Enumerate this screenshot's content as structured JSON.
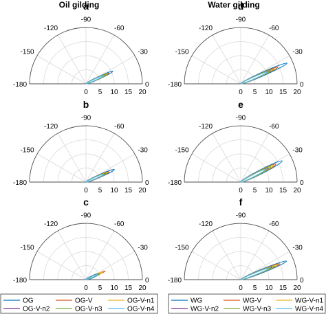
{
  "column_titles": [
    "Oil gilding",
    "Water gilding"
  ],
  "colors": {
    "blue": "#0072bd",
    "orange": "#d95319",
    "yellow": "#edb120",
    "purple": "#7e2f8e",
    "green": "#77ac30",
    "cyan": "#4dbeee"
  },
  "chart_data": [
    {
      "type": "polar-ellipse",
      "panel": "a",
      "column": 0,
      "row": 0,
      "angle_ticks": [
        "-180",
        "-150",
        "-120",
        "-90",
        "-60",
        "-30",
        "0"
      ],
      "radius_ticks": [
        "0",
        "5",
        "10",
        "15",
        "20"
      ],
      "rlim": [
        0,
        20
      ],
      "series": [
        {
          "name": "OG",
          "color_key": "blue",
          "angle_deg": -25,
          "length": 10.5,
          "width": 0.9
        },
        {
          "name": "OG-V",
          "color_key": "orange",
          "angle_deg": -25,
          "length": 9.0,
          "width": 0.7
        },
        {
          "name": "OG-V-n1",
          "color_key": "yellow",
          "angle_deg": -25,
          "length": 8.5,
          "width": 0.65
        },
        {
          "name": "OG-V-n2",
          "color_key": "purple",
          "angle_deg": -25,
          "length": 7.5,
          "width": 0.55
        },
        {
          "name": "OG-V-n3",
          "color_key": "green",
          "angle_deg": -25,
          "length": 8.0,
          "width": 0.6
        },
        {
          "name": "OG-V-n4",
          "color_key": "cyan",
          "angle_deg": -25,
          "length": 7.0,
          "width": 0.5
        }
      ]
    },
    {
      "type": "polar-ellipse",
      "panel": "d",
      "column": 1,
      "row": 0,
      "angle_ticks": [
        "-180",
        "-150",
        "-120",
        "-90",
        "-60",
        "-30",
        "0"
      ],
      "radius_ticks": [
        "0",
        "5",
        "10",
        "15",
        "20"
      ],
      "rlim": [
        0,
        20
      ],
      "series": [
        {
          "name": "WG",
          "color_key": "blue",
          "angle_deg": -24,
          "length": 18.0,
          "width": 1.3
        },
        {
          "name": "WG-V",
          "color_key": "orange",
          "angle_deg": -24,
          "length": 14.5,
          "width": 1.0
        },
        {
          "name": "WG-V-n1",
          "color_key": "yellow",
          "angle_deg": -24,
          "length": 13.0,
          "width": 0.9
        },
        {
          "name": "WG-V-n2",
          "color_key": "purple",
          "angle_deg": -24,
          "length": 11.5,
          "width": 0.8
        },
        {
          "name": "WG-V-n3",
          "color_key": "green",
          "angle_deg": -24,
          "length": 12.5,
          "width": 0.85
        },
        {
          "name": "WG-V-n4",
          "color_key": "cyan",
          "angle_deg": -24,
          "length": 10.5,
          "width": 0.7
        }
      ]
    },
    {
      "type": "polar-ellipse",
      "panel": "b",
      "column": 0,
      "row": 1,
      "angle_ticks": [
        "-180",
        "-150",
        "-120",
        "-90",
        "-60",
        "-30",
        "0"
      ],
      "radius_ticks": [
        "0",
        "5",
        "10",
        "15",
        "20"
      ],
      "rlim": [
        0,
        20
      ],
      "series": [
        {
          "name": "OG",
          "color_key": "blue",
          "angle_deg": -24,
          "length": 11.0,
          "width": 1.0
        },
        {
          "name": "OG-V",
          "color_key": "orange",
          "angle_deg": -24,
          "length": 9.0,
          "width": 0.8
        },
        {
          "name": "OG-V-n1",
          "color_key": "yellow",
          "angle_deg": -24,
          "length": 8.5,
          "width": 0.7
        },
        {
          "name": "OG-V-n2",
          "color_key": "purple",
          "angle_deg": -24,
          "length": 7.5,
          "width": 0.6
        },
        {
          "name": "OG-V-n3",
          "color_key": "green",
          "angle_deg": -24,
          "length": 8.0,
          "width": 0.65
        },
        {
          "name": "OG-V-n4",
          "color_key": "cyan",
          "angle_deg": -24,
          "length": 7.0,
          "width": 0.55
        }
      ]
    },
    {
      "type": "polar-ellipse",
      "panel": "e",
      "column": 1,
      "row": 1,
      "angle_ticks": [
        "-180",
        "-150",
        "-120",
        "-90",
        "-60",
        "-30",
        "0"
      ],
      "radius_ticks": [
        "0",
        "5",
        "10",
        "15",
        "20"
      ],
      "rlim": [
        0,
        20
      ],
      "series": [
        {
          "name": "WG",
          "color_key": "blue",
          "angle_deg": -27,
          "length": 16.5,
          "width": 1.5
        },
        {
          "name": "WG-V",
          "color_key": "orange",
          "angle_deg": -27,
          "length": 14.0,
          "width": 1.2
        },
        {
          "name": "WG-V-n1",
          "color_key": "yellow",
          "angle_deg": -27,
          "length": 13.0,
          "width": 1.1
        },
        {
          "name": "WG-V-n2",
          "color_key": "purple",
          "angle_deg": -27,
          "length": 11.0,
          "width": 0.9
        },
        {
          "name": "WG-V-n3",
          "color_key": "green",
          "angle_deg": -27,
          "length": 12.0,
          "width": 1.0
        },
        {
          "name": "WG-V-n4",
          "color_key": "cyan",
          "angle_deg": -27,
          "length": 10.0,
          "width": 0.8
        }
      ]
    },
    {
      "type": "polar-ellipse",
      "panel": "c",
      "column": 0,
      "row": 2,
      "angle_ticks": [
        "-180",
        "-150",
        "-120",
        "-90",
        "-60",
        "-30",
        "0"
      ],
      "radius_ticks": [
        "0",
        "5",
        "10",
        "15",
        "20"
      ],
      "rlim": [
        0,
        20
      ],
      "series": [
        {
          "name": "OG",
          "color_key": "blue",
          "angle_deg": -24,
          "length": 5.5,
          "width": 0.8
        },
        {
          "name": "OG-V",
          "color_key": "orange",
          "angle_deg": -24,
          "length": 7.5,
          "width": 0.5
        },
        {
          "name": "OG-V-n1",
          "color_key": "yellow",
          "angle_deg": -24,
          "length": 6.5,
          "width": 0.5
        },
        {
          "name": "OG-V-n2",
          "color_key": "purple",
          "angle_deg": -24,
          "length": 5.0,
          "width": 0.45
        },
        {
          "name": "OG-V-n3",
          "color_key": "green",
          "angle_deg": -24,
          "length": 5.5,
          "width": 0.45
        },
        {
          "name": "OG-V-n4",
          "color_key": "cyan",
          "angle_deg": -24,
          "length": 4.5,
          "width": 0.4
        }
      ]
    },
    {
      "type": "polar-ellipse",
      "panel": "f",
      "column": 1,
      "row": 2,
      "angle_ticks": [
        "-180",
        "-150",
        "-120",
        "-90",
        "-60",
        "-30",
        "0"
      ],
      "radius_ticks": [
        "0",
        "5",
        "10",
        "15",
        "20"
      ],
      "rlim": [
        0,
        20
      ],
      "series": [
        {
          "name": "WG",
          "color_key": "blue",
          "angle_deg": -22,
          "length": 17.5,
          "width": 1.3
        },
        {
          "name": "WG-V",
          "color_key": "orange",
          "angle_deg": -22,
          "length": 15.0,
          "width": 1.0
        },
        {
          "name": "WG-V-n1",
          "color_key": "yellow",
          "angle_deg": -22,
          "length": 14.0,
          "width": 0.9
        },
        {
          "name": "WG-V-n2",
          "color_key": "purple",
          "angle_deg": -22,
          "length": 12.0,
          "width": 0.8
        },
        {
          "name": "WG-V-n3",
          "color_key": "green",
          "angle_deg": -22,
          "length": 13.0,
          "width": 0.85
        },
        {
          "name": "WG-V-n4",
          "color_key": "cyan",
          "angle_deg": -22,
          "length": 11.0,
          "width": 0.7
        }
      ]
    }
  ],
  "legends": [
    {
      "column": 0,
      "entries": [
        {
          "label": "OG",
          "color_key": "blue"
        },
        {
          "label": "OG-V",
          "color_key": "orange"
        },
        {
          "label": "OG-V-n1",
          "color_key": "yellow"
        },
        {
          "label": "OG-V-n2",
          "color_key": "purple"
        },
        {
          "label": "OG-V-n3",
          "color_key": "green"
        },
        {
          "label": "OG-V-n4",
          "color_key": "cyan"
        }
      ]
    },
    {
      "column": 1,
      "entries": [
        {
          "label": "WG",
          "color_key": "blue"
        },
        {
          "label": "WG-V",
          "color_key": "orange"
        },
        {
          "label": "WG-V-n1",
          "color_key": "yellow"
        },
        {
          "label": "WG-V-n2",
          "color_key": "purple"
        },
        {
          "label": "WG-V-n3",
          "color_key": "green"
        },
        {
          "label": "WG-V-n4",
          "color_key": "cyan"
        }
      ]
    }
  ]
}
